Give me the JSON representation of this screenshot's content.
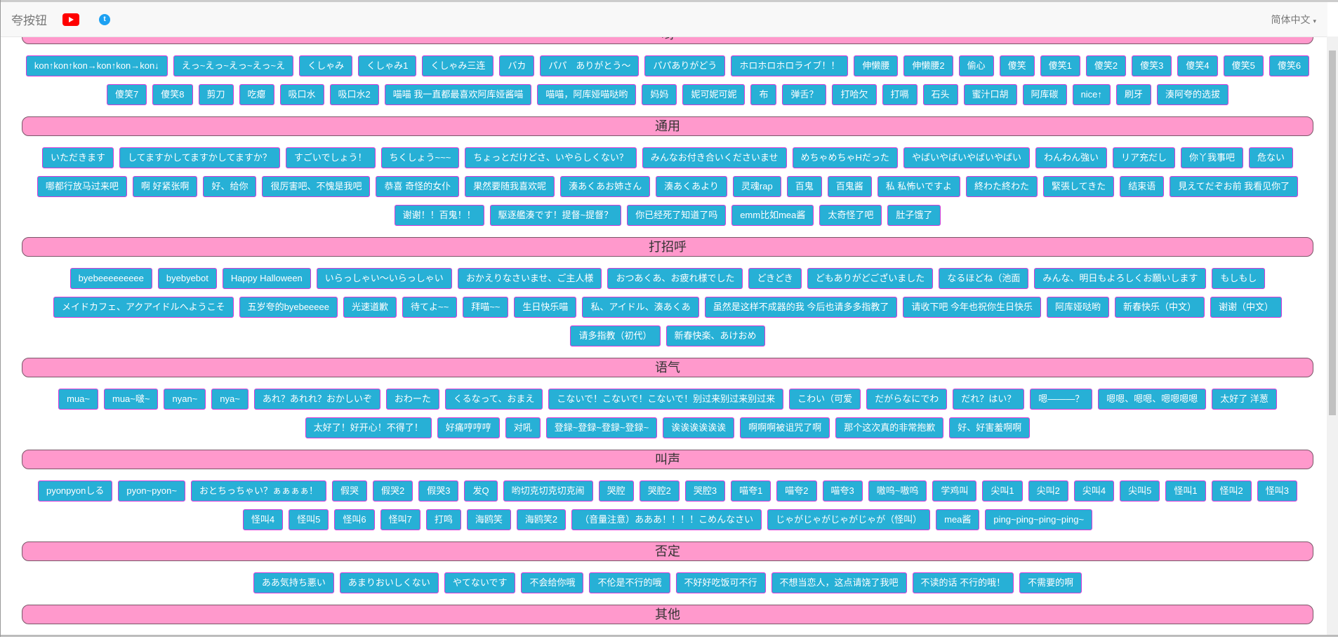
{
  "navbar": {
    "brand": "夸按钮",
    "youtube_icon": "youtube-icon",
    "twitter_icon": "twitter-icon",
    "language": "简体中文",
    "caret": "▾"
  },
  "colors": {
    "section_bar": "#ff99cc",
    "button_bg": "#27b0d6",
    "button_border": "#d63ad8"
  },
  "sections": [
    {
      "title": "哟",
      "items": [
        "kon↑kon↑kon→kon↑kon→kon↓",
        "えっ~えっ~えっ~えっ~え",
        "くしゃみ",
        "くしゃみ1",
        "くしゃみ三连",
        "バカ",
        "パパ　ありがとう～",
        "パパありがどう",
        "ホロホロホロライブ！！",
        "伸懒腰",
        "伸懒腰2",
        "偷心",
        "傻笑",
        "傻笑1",
        "傻笑2",
        "傻笑3",
        "傻笑4",
        "傻笑5",
        "傻笑6",
        "傻笑7",
        "傻笑8",
        "剪刀",
        "吃瘪",
        "吸口水",
        "吸口水2",
        "喵喵 我一直都最喜欢阿库娅酱喵",
        "喵喵，阿库娅喵哒哟",
        "妈妈",
        "妮可妮可妮",
        "布",
        "弹舌？",
        "打哈欠",
        "打嗝",
        "石头",
        "蜜汁口胡",
        "阿库碳",
        "nice↑",
        "刷牙",
        "湊阿夸的选拔"
      ]
    },
    {
      "title": "通用",
      "items": [
        "いただきます",
        "してますかしてますかしてますか？",
        "すごいでしょう！",
        "ちくしょう~~~",
        "ちょっとだけどさ、いやらしくない？",
        "みんなお付き合いくださいませ",
        "めちゃめちゃHだった",
        "やばいやばいやばいやばい",
        "わんわん強い",
        "リア充だし",
        "你丫我事吧",
        "危ない",
        "哪都行放马过来吧",
        "啊 好紧张啊",
        "好、给你",
        "很厉害吧、不愧是我吧",
        "恭喜 奇怪的女仆",
        "果然要随我喜欢呢",
        "湊あくあお姉さん",
        "湊あくあより",
        "灵魂rap",
        "百鬼",
        "百鬼酱",
        "私 私怖いですよ",
        "終わた終わた",
        "緊張してきた",
        "结束语",
        "見えてだぞお前 我看见你了",
        "谢谢！！百鬼！！",
        "駆逐艦湊です！提督~提督？",
        "你已经死了知道了吗",
        "emm比如mea酱",
        "太奇怪了吧",
        "肚子饿了"
      ]
    },
    {
      "title": "打招呼",
      "items": [
        "byebeeeeeeeee",
        "byebyebot",
        "Happy Halloween",
        "いらっしゃい～いらっしゃい",
        "おかえりなさいませ、ご主人様",
        "おつあくあ、お疲れ様でした",
        "どきどき",
        "どもありがどございました",
        "なるほどね（池面",
        "みんな、明日もよろしくお願いします",
        "もしもし",
        "メイドカフェ、アクアイドルへようこそ",
        "五岁夸的byebeeeee",
        "光速道歉",
        "待てよ~~",
        "拜喵~~",
        "生日快乐喵",
        "私、アイドル、湊あくあ",
        "虽然是这样不成器的我 今后也请多多指教了",
        "请收下吧 今年也祝你生日快乐",
        "阿库娅哒哟",
        "新春快乐（中文）",
        "谢谢（中文）",
        "请多指教（初代）",
        "新春快楽、あけおめ"
      ]
    },
    {
      "title": "语气",
      "items": [
        "mua~",
        "mua~啵~",
        "nyan~",
        "nya~",
        "あれ？あれれ？おかしいぞ",
        "おわーた",
        "くるなって、おまえ",
        "こないで！こないで！こないで！别过来别过来别过来",
        "こわい（可爱",
        "だがらなにでわ",
        "だれ？はい？",
        "嗯———？",
        "嗯嗯、嗯嗯、嗯嗯嗯嗯",
        "太好了 洋葱",
        "太好了！好开心！不得了！",
        "好痛哼哼哼",
        "对吼",
        "登録~登録~登録~登録~",
        "诶诶诶诶诶诶",
        "啊啊啊被诅咒了啊",
        "那个这次真的非常抱歉",
        "好、好害羞啊啊"
      ]
    },
    {
      "title": "叫声",
      "items": [
        "pyonpyonしる",
        "pyon~pyon~",
        "おとちっちゃい？ぁぁぁぁ！",
        "假哭",
        "假哭2",
        "假哭3",
        "发Q",
        "哟切克切克切克闹",
        "哭腔",
        "哭腔2",
        "哭腔3",
        "喵夸1",
        "喵夸2",
        "喵夸3",
        "嗷呜~嗷呜",
        "学鸡叫",
        "尖叫1",
        "尖叫2",
        "尖叫4",
        "尖叫5",
        "怪叫1",
        "怪叫2",
        "怪叫3",
        "怪叫4",
        "怪叫5",
        "怪叫6",
        "怪叫7",
        "打鸣",
        "海鸥笑",
        "海鸥笑2",
        "（音量注意）あああ！！！！こめんなさい",
        "じゃがじゃがじゃがじゃが（怪叫）",
        "mea酱",
        "ping~ping~ping~ping~"
      ]
    },
    {
      "title": "否定",
      "items": [
        "ああ気持ち悪い",
        "あまりおいしくない",
        "やてないです",
        "不会给你哦",
        "不伦是不行的哦",
        "不好好吃饭可不行",
        "不想当恋人，这点请饶了我吧",
        "不读的话 不行的哦！",
        "不需要的啊"
      ]
    },
    {
      "title": "其他",
      "items": []
    }
  ]
}
